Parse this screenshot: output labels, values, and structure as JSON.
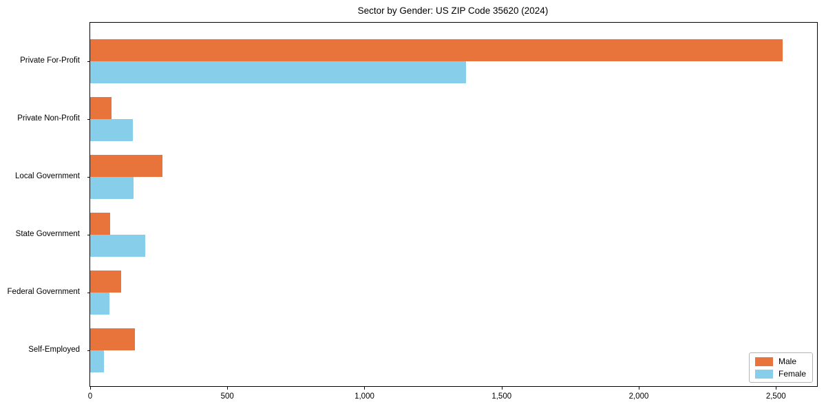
{
  "chart_data": {
    "type": "bar",
    "orientation": "horizontal",
    "title": "Sector by Gender: US ZIP Code 35620 (2024)",
    "categories": [
      "Private For-Profit",
      "Private Non-Profit",
      "Local Government",
      "State Government",
      "Federal Government",
      "Self-Employed"
    ],
    "series": [
      {
        "name": "Male",
        "color": "#e8743b",
        "values": [
          2525,
          78,
          263,
          74,
          114,
          164
        ]
      },
      {
        "name": "Female",
        "color": "#87ceeb",
        "values": [
          1370,
          155,
          157,
          200,
          71,
          51
        ]
      }
    ],
    "xlabel": "",
    "ylabel": "",
    "xlim": [
      0,
      2650
    ],
    "x_ticks": [
      0,
      500,
      1000,
      1500,
      2000,
      2500
    ],
    "x_tick_labels": [
      "0",
      "500",
      "1,000",
      "1,500",
      "2,000",
      "2,500"
    ],
    "grid": false,
    "legend": {
      "position": "lower right",
      "entries": [
        "Male",
        "Female"
      ]
    },
    "colors": {
      "male": "#e8743b",
      "female": "#87ceeb",
      "axis": "#000000",
      "background": "#ffffff"
    }
  }
}
